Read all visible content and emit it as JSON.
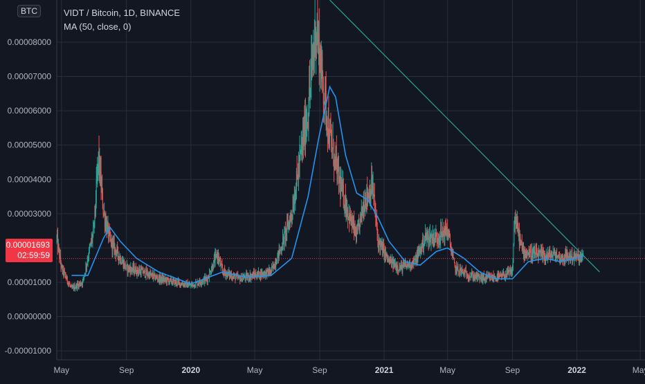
{
  "header": {
    "symbol_line": "VIDT / Bitcoin, 1D, BINANCE",
    "indicator_line": "MA (50, close, 0)",
    "currency_badge": "BTC"
  },
  "price_tag": {
    "price": "0.00001693",
    "countdown": "02:59:59"
  },
  "colors": {
    "background": "#131722",
    "grid": "#2a2e39",
    "up": "#26a69a",
    "down": "#ef5350",
    "ma": "#2196f3",
    "trendline": "#26a69a",
    "price_line": "#f23645"
  },
  "chart_data": {
    "type": "candlestick",
    "title": "VIDT / Bitcoin, 1D, BINANCE",
    "y_tick_labels": [
      "0.00008000",
      "0.00007000",
      "0.00006000",
      "0.00005000",
      "0.00004000",
      "0.00003000",
      "0.00002000",
      "0.00001000",
      "0.00000000",
      "-0.00001000"
    ],
    "y_ticks": [
      8e-05,
      7e-05,
      6e-05,
      5e-05,
      4e-05,
      3e-05,
      2e-05,
      1e-05,
      0.0,
      -1e-05
    ],
    "x_tick_labels": [
      "May",
      "Sep",
      "2020",
      "May",
      "Sep",
      "2021",
      "May",
      "Sep",
      "2022",
      "May"
    ],
    "x_ticks": [
      "2019-05-01",
      "2019-09-01",
      "2020-01-01",
      "2020-05-01",
      "2020-09-01",
      "2021-01-01",
      "2021-05-01",
      "2021-09-01",
      "2022-01-01",
      "2022-05-01"
    ],
    "ylim": [
      -1.26e-05,
      9.23e-05
    ],
    "xlim": [
      "2019-04-22",
      "2022-05-10"
    ],
    "last_price": 1.693e-05,
    "price_path": [
      [
        "2019-04-22",
        2.25e-05
      ],
      [
        "2019-05-01",
        1.4e-05
      ],
      [
        "2019-05-20",
        8e-06
      ],
      [
        "2019-06-10",
        1e-05
      ],
      [
        "2019-07-01",
        2.5e-05
      ],
      [
        "2019-07-10",
        4.6e-05
      ],
      [
        "2019-07-20",
        3e-05
      ],
      [
        "2019-08-01",
        2.2e-05
      ],
      [
        "2019-08-20",
        1.7e-05
      ],
      [
        "2019-09-01",
        1.4e-05
      ],
      [
        "2019-10-01",
        1.3e-05
      ],
      [
        "2019-11-01",
        1.1e-05
      ],
      [
        "2019-12-01",
        1e-05
      ],
      [
        "2020-01-01",
        9e-06
      ],
      [
        "2020-02-01",
        1.1e-05
      ],
      [
        "2020-02-20",
        1.8e-05
      ],
      [
        "2020-03-01",
        1.3e-05
      ],
      [
        "2020-04-01",
        1.1e-05
      ],
      [
        "2020-05-01",
        1.2e-05
      ],
      [
        "2020-06-01",
        1.3e-05
      ],
      [
        "2020-06-20",
        2e-05
      ],
      [
        "2020-07-10",
        3e-05
      ],
      [
        "2020-07-25",
        4.5e-05
      ],
      [
        "2020-08-10",
        6e-05
      ],
      [
        "2020-08-25",
        8.5e-05
      ],
      [
        "2020-09-05",
        7e-05
      ],
      [
        "2020-09-20",
        5.2e-05
      ],
      [
        "2020-10-10",
        3.8e-05
      ],
      [
        "2020-10-25",
        3e-05
      ],
      [
        "2020-11-10",
        2.3e-05
      ],
      [
        "2020-11-25",
        3.4e-05
      ],
      [
        "2020-12-10",
        3.8e-05
      ],
      [
        "2020-12-20",
        2.2e-05
      ],
      [
        "2021-01-10",
        1.6e-05
      ],
      [
        "2021-02-01",
        1.4e-05
      ],
      [
        "2021-03-01",
        1.6e-05
      ],
      [
        "2021-03-20",
        2.3e-05
      ],
      [
        "2021-04-10",
        2.3e-05
      ],
      [
        "2021-05-01",
        2.5e-05
      ],
      [
        "2021-05-15",
        1.4e-05
      ],
      [
        "2021-06-10",
        1.2e-05
      ],
      [
        "2021-07-10",
        1.1e-05
      ],
      [
        "2021-08-10",
        1.15e-05
      ],
      [
        "2021-09-01",
        1.3e-05
      ],
      [
        "2021-09-05",
        2.9e-05
      ],
      [
        "2021-09-20",
        1.9e-05
      ],
      [
        "2021-10-10",
        1.8e-05
      ],
      [
        "2021-11-01",
        1.75e-05
      ],
      [
        "2021-11-20",
        1.8e-05
      ],
      [
        "2021-12-01",
        1.7e-05
      ],
      [
        "2021-12-20",
        1.75e-05
      ],
      [
        "2022-01-05",
        1.7e-05
      ],
      [
        "2022-01-13",
        1.69e-05
      ]
    ],
    "series": [
      {
        "name": "MA (50, close, 0)",
        "points": [
          [
            "2019-05-20",
            1.2e-05
          ],
          [
            "2019-06-20",
            1.2e-05
          ],
          [
            "2019-07-20",
            2.3e-05
          ],
          [
            "2019-08-01",
            2.6e-05
          ],
          [
            "2019-08-20",
            2.2e-05
          ],
          [
            "2019-09-20",
            1.7e-05
          ],
          [
            "2019-11-01",
            1.3e-05
          ],
          [
            "2020-01-01",
            9.5e-06
          ],
          [
            "2020-03-01",
            1.3e-05
          ],
          [
            "2020-04-15",
            1.15e-05
          ],
          [
            "2020-06-01",
            1.2e-05
          ],
          [
            "2020-07-10",
            1.7e-05
          ],
          [
            "2020-08-10",
            3.5e-05
          ],
          [
            "2020-08-30",
            5.2e-05
          ],
          [
            "2020-09-20",
            6.7e-05
          ],
          [
            "2020-10-01",
            6.4e-05
          ],
          [
            "2020-10-20",
            4.7e-05
          ],
          [
            "2020-11-10",
            3.6e-05
          ],
          [
            "2020-12-01",
            3.4e-05
          ],
          [
            "2020-12-20",
            2.9e-05
          ],
          [
            "2021-01-10",
            2.2e-05
          ],
          [
            "2021-02-10",
            1.6e-05
          ],
          [
            "2021-03-10",
            1.5e-05
          ],
          [
            "2021-04-10",
            1.9e-05
          ],
          [
            "2021-05-01",
            2e-05
          ],
          [
            "2021-06-01",
            1.7e-05
          ],
          [
            "2021-07-01",
            1.3e-05
          ],
          [
            "2021-08-01",
            1.1e-05
          ],
          [
            "2021-09-01",
            1.1e-05
          ],
          [
            "2021-10-01",
            1.6e-05
          ],
          [
            "2021-11-01",
            1.7e-05
          ],
          [
            "2021-12-01",
            1.6e-05
          ],
          [
            "2022-01-13",
            1.75e-05
          ]
        ]
      }
    ],
    "trendline": [
      [
        "2020-09-20",
        9.23e-05
      ],
      [
        "2022-02-13",
        1.3e-05
      ]
    ]
  }
}
